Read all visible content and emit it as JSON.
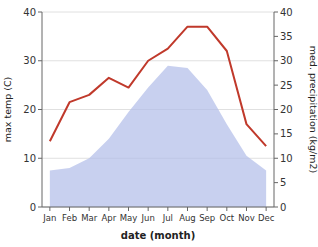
{
  "chart_data": {
    "type": "combo",
    "categories": [
      "Jan",
      "Feb",
      "Mar",
      "Apr",
      "May",
      "Jun",
      "Jul",
      "Aug",
      "Sep",
      "Oct",
      "Nov",
      "Dec"
    ],
    "xlabel": "date (month)",
    "ylabel": "max temp (C)",
    "y2label": "med. precipitation (kg/m2)",
    "series": [
      {
        "type": "area",
        "color": "#b0bce8",
        "values": [
          7.5,
          8.0,
          10.0,
          14.0,
          19.5,
          24.5,
          29.0,
          28.5,
          24.0,
          17.0,
          10.5,
          7.5
        ]
      },
      {
        "type": "line",
        "color": "#c0392b",
        "axis": "y2",
        "values": [
          13.5,
          21.5,
          23.0,
          26.5,
          24.5,
          30.0,
          32.5,
          37.0,
          37.0,
          32.0,
          17.0,
          12.5
        ]
      }
    ],
    "ylim": [
      0,
      40
    ],
    "yticks": [
      0,
      10,
      20,
      30,
      40
    ],
    "y2lim": [
      0,
      40
    ],
    "y2ticks": [
      0,
      5,
      10,
      15,
      20,
      25,
      30,
      35,
      40
    ],
    "grid": true
  }
}
